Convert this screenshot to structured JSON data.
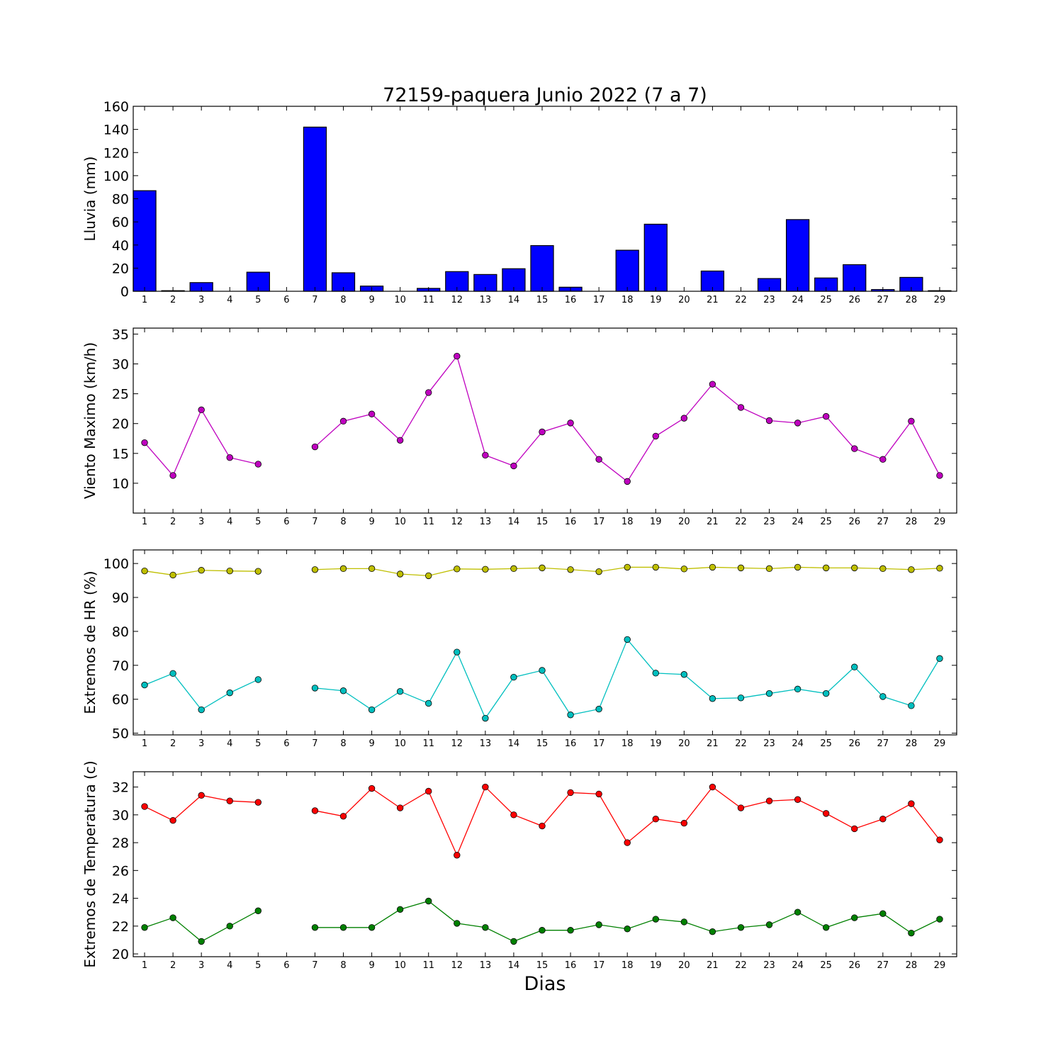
{
  "title": "72159-paquera Junio 2022  (7 a 7)",
  "xlabel": "Dias",
  "chart_data": [
    {
      "type": "bar",
      "ylabel": "Lluvia (mm)",
      "ylim": [
        0,
        160
      ],
      "yticks": [
        0,
        20,
        40,
        60,
        80,
        100,
        120,
        140,
        160
      ],
      "categories": [
        1,
        2,
        3,
        4,
        5,
        6,
        7,
        8,
        9,
        10,
        11,
        12,
        13,
        14,
        15,
        16,
        17,
        18,
        19,
        20,
        21,
        22,
        23,
        24,
        25,
        26,
        27,
        28,
        29
      ],
      "series": [
        {
          "color": "#0000ff",
          "values": [
            87,
            0.5,
            7.5,
            0,
            16.5,
            0,
            142,
            16,
            4.5,
            0,
            2.5,
            17,
            14.5,
            19.5,
            39.5,
            3.5,
            0,
            35.5,
            58,
            0,
            17.5,
            0,
            11,
            62,
            11.5,
            23,
            1.5,
            12,
            0.5
          ]
        }
      ]
    },
    {
      "type": "line",
      "ylabel": "Viento Maximo (km/h)",
      "ylim": [
        5,
        36
      ],
      "yticks": [
        10,
        15,
        20,
        25,
        30,
        35
      ],
      "x": [
        1,
        2,
        3,
        4,
        5,
        6,
        7,
        8,
        9,
        10,
        11,
        12,
        13,
        14,
        15,
        16,
        17,
        18,
        19,
        20,
        21,
        22,
        23,
        24,
        25,
        26,
        27,
        28,
        29
      ],
      "series": [
        {
          "color": "#bf00bf",
          "values": [
            16.8,
            11.3,
            22.3,
            14.3,
            13.2,
            null,
            16.1,
            20.4,
            21.6,
            17.2,
            25.2,
            31.3,
            14.7,
            12.9,
            18.6,
            20.1,
            14.0,
            10.3,
            17.9,
            20.9,
            26.6,
            22.7,
            20.5,
            20.1,
            21.2,
            15.8,
            14.0,
            20.4,
            11.3
          ]
        }
      ]
    },
    {
      "type": "line",
      "ylabel": "Extremos de HR (%)",
      "ylim": [
        49.5,
        104
      ],
      "yticks": [
        50,
        60,
        70,
        80,
        90,
        100
      ],
      "x": [
        1,
        2,
        3,
        4,
        5,
        6,
        7,
        8,
        9,
        10,
        11,
        12,
        13,
        14,
        15,
        16,
        17,
        18,
        19,
        20,
        21,
        22,
        23,
        24,
        25,
        26,
        27,
        28,
        29
      ],
      "series": [
        {
          "color": "#bfbf00",
          "values": [
            97.8,
            96.6,
            98.0,
            97.8,
            97.7,
            null,
            98.2,
            98.5,
            98.5,
            96.9,
            96.4,
            98.4,
            98.3,
            98.5,
            98.7,
            98.2,
            97.6,
            98.9,
            98.9,
            98.4,
            98.9,
            98.7,
            98.5,
            98.9,
            98.7,
            98.7,
            98.5,
            98.2,
            98.6
          ]
        },
        {
          "color": "#00bfbf",
          "values": [
            64.2,
            67.6,
            56.9,
            61.9,
            65.8,
            null,
            63.3,
            62.5,
            56.9,
            62.3,
            58.8,
            73.9,
            54.4,
            66.5,
            68.5,
            55.4,
            57.1,
            77.6,
            67.7,
            67.3,
            60.2,
            60.4,
            61.7,
            63.0,
            61.7,
            69.5,
            60.8,
            58.1,
            72.0
          ]
        }
      ]
    },
    {
      "type": "line",
      "ylabel": "Extremos de Temperatura (c)",
      "ylim": [
        19.8,
        33.1
      ],
      "yticks": [
        20,
        22,
        24,
        26,
        28,
        30,
        32
      ],
      "x": [
        1,
        2,
        3,
        4,
        5,
        6,
        7,
        8,
        9,
        10,
        11,
        12,
        13,
        14,
        15,
        16,
        17,
        18,
        19,
        20,
        21,
        22,
        23,
        24,
        25,
        26,
        27,
        28,
        29
      ],
      "series": [
        {
          "color": "#ff0000",
          "values": [
            30.6,
            29.6,
            31.4,
            31.0,
            30.9,
            null,
            30.3,
            29.9,
            31.9,
            30.5,
            31.7,
            27.1,
            32.0,
            30.0,
            29.2,
            31.6,
            31.5,
            28.0,
            29.7,
            29.4,
            32.0,
            30.5,
            31.0,
            31.1,
            30.1,
            29.0,
            29.7,
            30.8,
            28.2
          ]
        },
        {
          "color": "#008000",
          "values": [
            21.9,
            22.6,
            20.9,
            22.0,
            23.1,
            null,
            21.9,
            21.9,
            21.9,
            23.2,
            23.8,
            22.2,
            21.9,
            20.9,
            21.7,
            21.7,
            22.1,
            21.8,
            22.5,
            22.3,
            21.6,
            21.9,
            22.1,
            23.0,
            21.9,
            22.6,
            22.9,
            21.5,
            22.5
          ]
        }
      ]
    }
  ]
}
